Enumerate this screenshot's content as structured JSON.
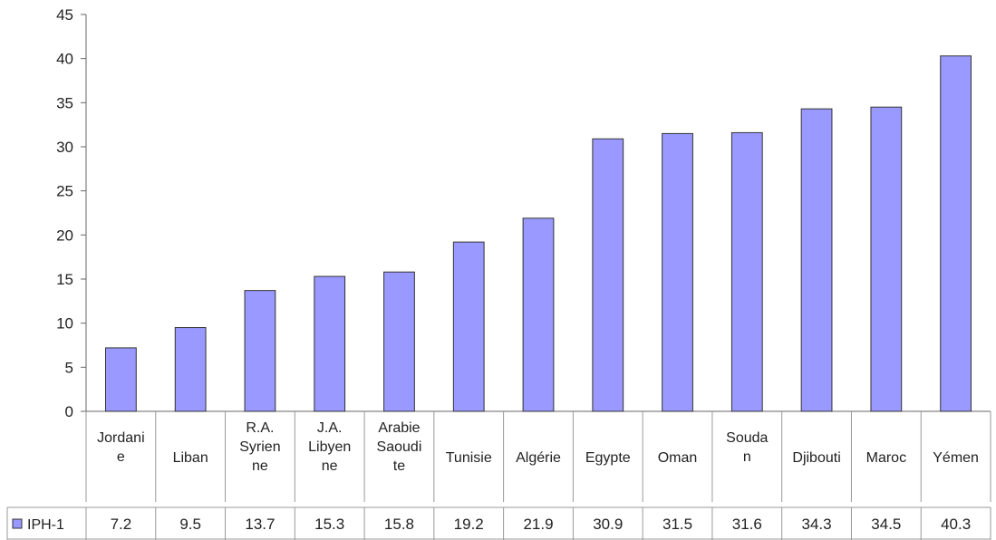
{
  "chart_data": {
    "type": "bar",
    "title": "",
    "xlabel": "",
    "ylabel": "",
    "ylim": [
      0,
      45
    ],
    "yticks": [
      0,
      5,
      10,
      15,
      20,
      25,
      30,
      35,
      40,
      45
    ],
    "grid": false,
    "data_table": true,
    "legend_placement": "data-table-row-header",
    "categories": [
      [
        "Jordani",
        "e"
      ],
      [
        "Liban"
      ],
      [
        "R.A.",
        "Syrien",
        "ne"
      ],
      [
        "J.A.",
        "Libyen",
        "ne"
      ],
      [
        "Arabie",
        "Saoudi",
        "te"
      ],
      [
        "Tunisie"
      ],
      [
        "Algérie"
      ],
      [
        "Egypte"
      ],
      [
        "Oman"
      ],
      [
        "Souda",
        "n"
      ],
      [
        "Djibouti"
      ],
      [
        "Maroc"
      ],
      [
        "Yémen"
      ]
    ],
    "series": [
      {
        "name": "IPH-1",
        "color": "#9999ff",
        "values": [
          7.2,
          9.5,
          13.7,
          15.3,
          15.8,
          19.2,
          21.9,
          30.9,
          31.5,
          31.6,
          34.3,
          34.5,
          40.3
        ],
        "labels": [
          "7.2",
          "9.5",
          "13.7",
          "15.3",
          "15.8",
          "19.2",
          "21.9",
          "30.9",
          "31.5",
          "31.6",
          "34.3",
          "34.5",
          "40.3"
        ]
      }
    ]
  }
}
